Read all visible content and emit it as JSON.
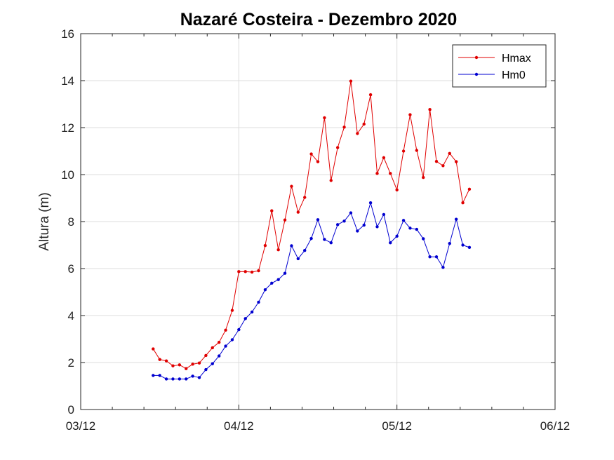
{
  "chart_data": {
    "type": "line",
    "title": "Nazaré Costeira - Dezembro  2020",
    "ylabel": "Altura (m)",
    "xlabel": "",
    "ylim": [
      0,
      16
    ],
    "yticks": [
      "0",
      "2",
      "4",
      "6",
      "8",
      "10",
      "12",
      "14",
      "16"
    ],
    "xlim": [
      0,
      3
    ],
    "xticks": [
      "03/12",
      "04/12",
      "05/12",
      "06/12"
    ],
    "grid": true,
    "legend_position": "top-right",
    "x": [
      0.4583,
      0.5,
      0.5417,
      0.5833,
      0.625,
      0.6667,
      0.7083,
      0.75,
      0.7917,
      0.8333,
      0.875,
      0.9167,
      0.9583,
      1.0,
      1.0417,
      1.0833,
      1.125,
      1.1667,
      1.2083,
      1.25,
      1.2917,
      1.3333,
      1.375,
      1.4167,
      1.4583,
      1.5,
      1.5417,
      1.5833,
      1.625,
      1.6667,
      1.7083,
      1.75,
      1.7917,
      1.8333,
      1.875,
      1.9167,
      1.9583,
      2.0,
      2.0417,
      2.0833,
      2.125,
      2.1667,
      2.2083,
      2.25,
      2.2917,
      2.3333,
      2.375,
      2.4167,
      2.4583
    ],
    "series": [
      {
        "name": "Hmax",
        "color": "#e00000",
        "values": [
          2.58,
          2.13,
          2.07,
          1.86,
          1.9,
          1.74,
          1.93,
          1.98,
          2.3,
          2.63,
          2.86,
          3.38,
          4.22,
          5.87,
          5.87,
          5.85,
          5.91,
          6.98,
          8.46,
          6.8,
          8.07,
          9.5,
          8.4,
          9.03,
          10.88,
          10.55,
          12.42,
          9.75,
          11.15,
          12.02,
          13.98,
          11.75,
          12.15,
          13.4,
          10.05,
          10.72,
          10.05,
          9.35,
          11.0,
          12.55,
          11.03,
          9.88,
          12.77,
          10.56,
          10.38,
          10.9,
          10.55,
          8.8,
          9.38
        ]
      },
      {
        "name": "Hm0",
        "color": "#0000d0",
        "values": [
          1.45,
          1.45,
          1.3,
          1.3,
          1.3,
          1.3,
          1.42,
          1.36,
          1.7,
          1.95,
          2.28,
          2.7,
          2.97,
          3.4,
          3.87,
          4.15,
          4.57,
          5.1,
          5.38,
          5.53,
          5.8,
          6.97,
          6.42,
          6.77,
          7.28,
          8.08,
          7.24,
          7.1,
          7.87,
          8.02,
          8.37,
          7.6,
          7.85,
          8.8,
          7.78,
          8.3,
          7.1,
          7.38,
          8.05,
          7.72,
          7.67,
          7.27,
          6.5,
          6.5,
          6.05,
          7.07,
          8.1,
          7.0,
          6.9
        ]
      }
    ]
  }
}
